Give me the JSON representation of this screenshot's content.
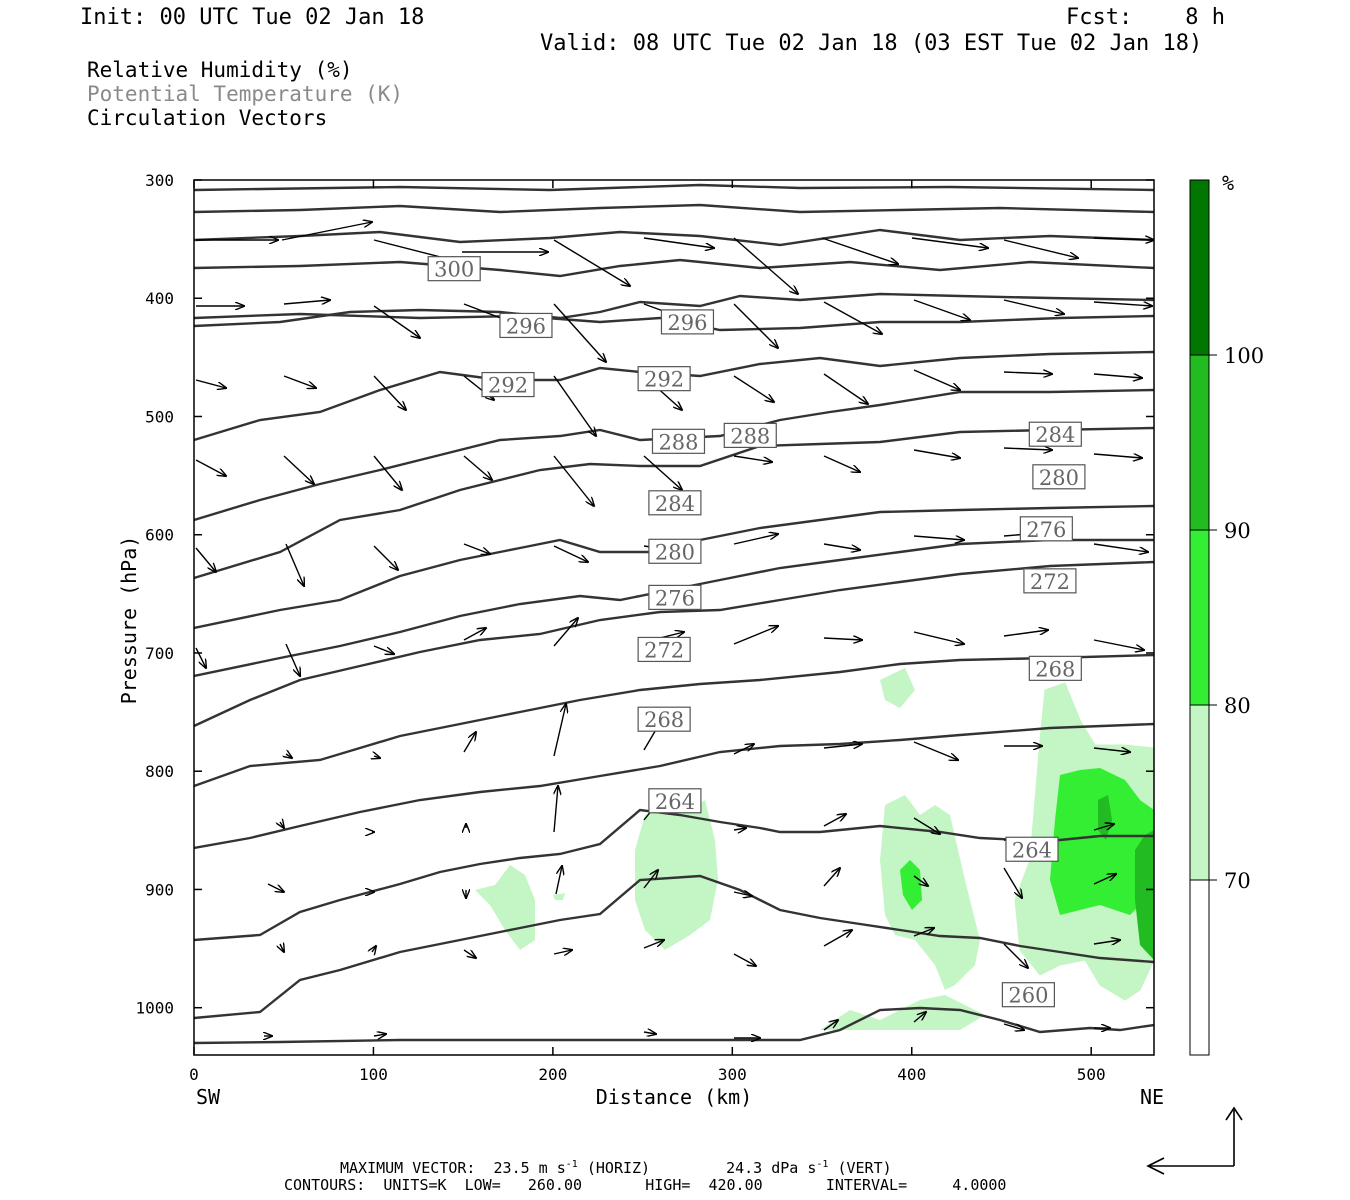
{
  "header": {
    "init": "Init: 00 UTC Tue 02 Jan 18",
    "fcst": "Fcst:    8 h",
    "valid": "Valid: 08 UTC Tue 02 Jan 18 (03 EST Tue 02 Jan 18)"
  },
  "legend": {
    "rh": "Relative Humidity (%)",
    "theta": "Potential Temperature (K)",
    "vectors": "Circulation Vectors"
  },
  "footer": {
    "line1a": "MAXIMUM VECTOR:  23.5 m s",
    "line1a_sup": "-1",
    "line1b": " (HORIZ)",
    "line1c": "24.3 dPa s",
    "line1c_sup": "-1",
    "line1d": " (VERT)",
    "line2": "CONTOURS:  UNITS=K  LOW=   260.00       HIGH=  420.00       INTERVAL=     4.0000"
  },
  "chart_data": {
    "type": "heatmap",
    "xlabel": "Distance (km)",
    "ylabel": "Pressure (hPa)",
    "x_ticks": [
      0,
      100,
      200,
      300,
      400,
      500
    ],
    "y_ticks": [
      300,
      400,
      500,
      600,
      700,
      800,
      900,
      1000
    ],
    "xlim": [
      0,
      535
    ],
    "ylim": [
      300,
      1040
    ],
    "x_end_labels": {
      "left": "SW",
      "right": "NE"
    },
    "colorbar": {
      "unit": "%",
      "levels": [
        70,
        80,
        90,
        100
      ],
      "colors": [
        "#ffffff",
        "#c4f5c4",
        "#33ee33",
        "#22bb22",
        "#007700"
      ]
    },
    "theta_contour_labels": [
      {
        "value": "300",
        "x": 145,
        "p": 375
      },
      {
        "value": "296",
        "x": 185,
        "p": 423
      },
      {
        "value": "296",
        "x": 275,
        "p": 420
      },
      {
        "value": "292",
        "x": 175,
        "p": 473
      },
      {
        "value": "292",
        "x": 262,
        "p": 468
      },
      {
        "value": "288",
        "x": 270,
        "p": 521
      },
      {
        "value": "288",
        "x": 310,
        "p": 516
      },
      {
        "value": "284",
        "x": 480,
        "p": 515
      },
      {
        "value": "280",
        "x": 482,
        "p": 551
      },
      {
        "value": "284",
        "x": 268,
        "p": 573
      },
      {
        "value": "276",
        "x": 475,
        "p": 595
      },
      {
        "value": "280",
        "x": 268,
        "p": 614
      },
      {
        "value": "272",
        "x": 477,
        "p": 639
      },
      {
        "value": "276",
        "x": 268,
        "p": 653
      },
      {
        "value": "272",
        "x": 262,
        "p": 697
      },
      {
        "value": "268",
        "x": 480,
        "p": 713
      },
      {
        "value": "268",
        "x": 262,
        "p": 756
      },
      {
        "value": "264",
        "x": 268,
        "p": 825
      },
      {
        "value": "264",
        "x": 467,
        "p": 866
      },
      {
        "value": "260",
        "x": 465,
        "p": 989
      }
    ]
  }
}
